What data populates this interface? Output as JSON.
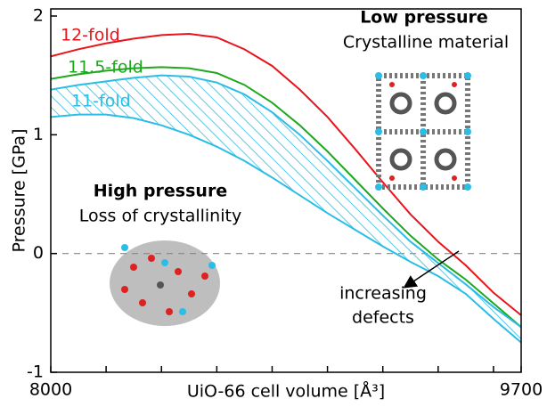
{
  "chart_data": {
    "type": "line",
    "x_label": "UiO-66 cell volume [Å³]",
    "y_label": "Pressure [GPa]",
    "x": [
      8000,
      8100,
      8200,
      8300,
      8400,
      8500,
      8600,
      8700,
      8800,
      8900,
      9000,
      9100,
      9200,
      9300,
      9400,
      9500,
      9600,
      9700
    ],
    "series": [
      {
        "name": "12-fold",
        "color": "#e8141c",
        "values": [
          1.66,
          1.72,
          1.77,
          1.81,
          1.84,
          1.85,
          1.82,
          1.72,
          1.58,
          1.38,
          1.15,
          0.88,
          0.6,
          0.33,
          0.1,
          -0.1,
          -0.33,
          -0.52
        ]
      },
      {
        "name": "11.5-fold",
        "color": "#1ea81e",
        "values": [
          1.47,
          1.51,
          1.54,
          1.56,
          1.57,
          1.56,
          1.52,
          1.42,
          1.27,
          1.08,
          0.86,
          0.62,
          0.38,
          0.15,
          -0.05,
          -0.22,
          -0.42,
          -0.62
        ]
      },
      {
        "name": "11-fold",
        "color": "#2bbde6",
        "upper": [
          1.38,
          1.42,
          1.45,
          1.48,
          1.5,
          1.49,
          1.44,
          1.34,
          1.19,
          1.0,
          0.78,
          0.55,
          0.32,
          0.1,
          -0.08,
          -0.26,
          -0.45,
          -0.62
        ],
        "lower": [
          1.15,
          1.17,
          1.17,
          1.14,
          1.08,
          1.0,
          0.9,
          0.78,
          0.64,
          0.49,
          0.34,
          0.2,
          0.06,
          -0.07,
          -0.19,
          -0.34,
          -0.55,
          -0.75
        ]
      }
    ],
    "xlim": [
      8000,
      9700
    ],
    "xticks": [
      8000,
      9700
    ],
    "x_minor_ticks": [
      8200,
      8400,
      8600,
      8800,
      9000,
      9200,
      9400,
      9600
    ],
    "ylim": [
      -1,
      2
    ],
    "yticks": [
      -1,
      0,
      1,
      2
    ],
    "reference_line": 0,
    "annotations": {
      "low_title": "Low pressure",
      "low_text": "Crystalline material",
      "high_title": "High pressure",
      "high_text": "Loss of crystallinity",
      "arrow_text_1": "increasing",
      "arrow_text_2": "defects"
    }
  }
}
